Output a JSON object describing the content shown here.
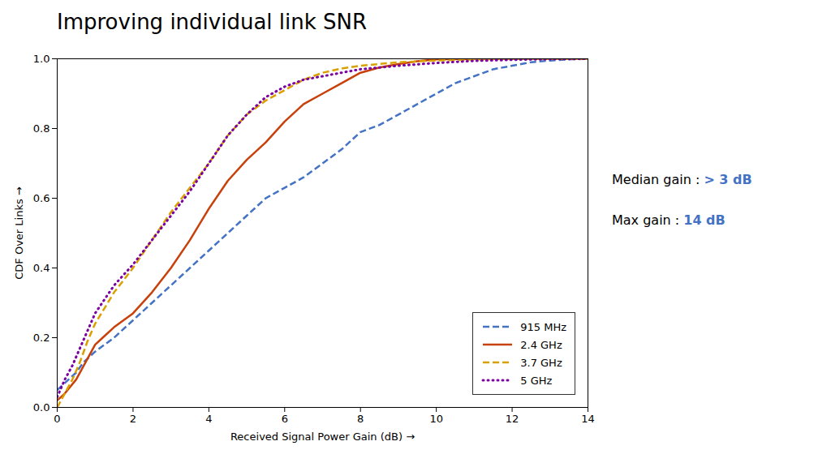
{
  "chart_data": {
    "type": "line",
    "title": "Improving individual link SNR",
    "xlabel": "Received Signal Power Gain (dB)",
    "ylabel": "CDF Over Links",
    "xlim": [
      0,
      14
    ],
    "ylim": [
      0,
      1
    ],
    "xticks": [
      0,
      2,
      4,
      6,
      8,
      10,
      12,
      14
    ],
    "yticks": [
      {
        "value": 0,
        "label": "0.0"
      },
      0.2,
      0.4,
      0.6,
      0.8,
      {
        "value": 1,
        "label": "1.0"
      }
    ],
    "grid": false,
    "legend": "lower right",
    "annotations": [
      {
        "text": "Median gain : ",
        "highlight": "> 3 dB",
        "color": "#4472C4"
      },
      {
        "text": "Max gain : ",
        "highlight": "14 dB",
        "color": "#4472C4"
      }
    ],
    "series": [
      {
        "name": "915 MHz",
        "color": "#4472C4",
        "line_style": "dashed",
        "x": [
          0,
          0.3,
          0.5,
          0.7,
          1.0,
          1.5,
          2.0,
          2.5,
          3.0,
          3.5,
          4.0,
          4.5,
          5.0,
          5.5,
          6.0,
          6.5,
          7.0,
          7.5,
          8.0,
          8.5,
          9.0,
          9.5,
          10.0,
          10.5,
          11.0,
          11.5,
          12.0,
          12.5,
          13.0,
          13.5,
          14.0
        ],
        "values": [
          0.05,
          0.08,
          0.1,
          0.13,
          0.16,
          0.2,
          0.25,
          0.3,
          0.35,
          0.4,
          0.45,
          0.5,
          0.55,
          0.6,
          0.63,
          0.66,
          0.7,
          0.74,
          0.79,
          0.81,
          0.84,
          0.87,
          0.9,
          0.93,
          0.95,
          0.97,
          0.98,
          0.99,
          0.995,
          0.998,
          1.0
        ]
      },
      {
        "name": "2.4 GHz",
        "color": "#C8400A",
        "line_style": "solid",
        "x": [
          0,
          0.2,
          0.5,
          0.8,
          1.0,
          1.2,
          1.5,
          2.0,
          2.5,
          3.0,
          3.5,
          4.0,
          4.5,
          5.0,
          5.5,
          6.0,
          6.5,
          7.0,
          7.5,
          8.0,
          8.5,
          9.0,
          9.5,
          10.0,
          11.0,
          12.0,
          13.0,
          14.0
        ],
        "values": [
          0.02,
          0.04,
          0.08,
          0.14,
          0.18,
          0.2,
          0.23,
          0.27,
          0.33,
          0.4,
          0.48,
          0.57,
          0.65,
          0.71,
          0.76,
          0.82,
          0.87,
          0.9,
          0.93,
          0.96,
          0.975,
          0.985,
          0.993,
          0.998,
          1.0,
          1.0,
          1.0,
          1.0
        ]
      },
      {
        "name": "3.7 GHz",
        "color": "#DAA000",
        "line_style": "dashed",
        "x": [
          0,
          0.2,
          0.4,
          0.6,
          0.8,
          1.0,
          1.5,
          2.0,
          2.5,
          3.0,
          3.5,
          4.0,
          4.5,
          5.0,
          5.5,
          6.0,
          6.5,
          7.0,
          7.5,
          8.0,
          9.0,
          10.0,
          11.0,
          12.0,
          13.0,
          14.0
        ],
        "values": [
          0.0,
          0.04,
          0.08,
          0.13,
          0.19,
          0.24,
          0.33,
          0.4,
          0.48,
          0.56,
          0.63,
          0.7,
          0.78,
          0.84,
          0.88,
          0.91,
          0.94,
          0.96,
          0.972,
          0.98,
          0.99,
          0.995,
          0.998,
          1.0,
          1.0,
          1.0
        ]
      },
      {
        "name": "5 GHz",
        "color": "#7B00A0",
        "line_style": "dotted",
        "x": [
          0,
          0.2,
          0.4,
          0.6,
          0.8,
          1.0,
          1.5,
          2.0,
          2.5,
          3.0,
          3.5,
          4.0,
          4.5,
          5.0,
          5.5,
          6.0,
          6.5,
          7.0,
          8.0,
          9.0,
          10.0,
          11.0,
          12.0,
          13.0,
          14.0
        ],
        "values": [
          0.03,
          0.08,
          0.12,
          0.17,
          0.22,
          0.27,
          0.35,
          0.41,
          0.48,
          0.55,
          0.62,
          0.7,
          0.78,
          0.84,
          0.89,
          0.92,
          0.94,
          0.95,
          0.97,
          0.98,
          0.988,
          0.994,
          0.997,
          0.999,
          1.0
        ]
      }
    ]
  }
}
